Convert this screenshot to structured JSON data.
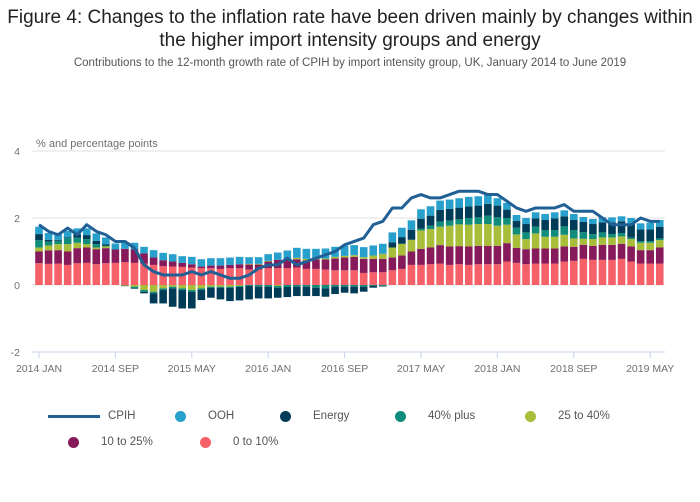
{
  "chart_data": {
    "type": "bar",
    "title": "Figure 4: Changes to the inflation rate have been driven mainly by changes within the higher import intensity groups and energy",
    "subtitle": "Contributions to the 12-month growth rate of CPIH by import intensity group, UK, January 2014 to June 2019",
    "ylabel": "% and percentage points",
    "ylim": [
      -2,
      4
    ],
    "yticks": [
      "4",
      "2",
      "0",
      "-2"
    ],
    "yticks_values": [
      4,
      2,
      0,
      -2
    ],
    "xticks": [
      {
        "label": "2014 JAN",
        "index": 0
      },
      {
        "label": "2014 SEP",
        "index": 8
      },
      {
        "label": "2015 MAY",
        "index": 16
      },
      {
        "label": "2016 JAN",
        "index": 24
      },
      {
        "label": "2016 SEP",
        "index": 32
      },
      {
        "label": "2017 MAY",
        "index": 40
      },
      {
        "label": "2018 JAN",
        "index": 48
      },
      {
        "label": "2018 SEP",
        "index": 56
      },
      {
        "label": "2019 MAY",
        "index": 64
      }
    ],
    "start": "2014 JAN",
    "n_months": 66,
    "grid": true,
    "legend_position": "bottom",
    "stacked_series": [
      {
        "name": "0 to 10%",
        "color": "#f66068",
        "values": [
          0.65,
          0.63,
          0.64,
          0.6,
          0.65,
          0.66,
          0.62,
          0.65,
          0.66,
          0.68,
          0.66,
          0.64,
          0.6,
          0.56,
          0.55,
          0.54,
          0.52,
          0.5,
          0.5,
          0.48,
          0.5,
          0.5,
          0.46,
          0.46,
          0.5,
          0.5,
          0.5,
          0.52,
          0.48,
          0.48,
          0.46,
          0.44,
          0.44,
          0.44,
          0.36,
          0.38,
          0.38,
          0.44,
          0.48,
          0.6,
          0.6,
          0.62,
          0.64,
          0.6,
          0.62,
          0.6,
          0.62,
          0.62,
          0.62,
          0.7,
          0.66,
          0.62,
          0.64,
          0.64,
          0.64,
          0.7,
          0.72,
          0.78,
          0.75,
          0.75,
          0.75,
          0.78,
          0.7,
          0.64,
          0.64,
          0.64
        ]
      },
      {
        "name": "10 to 25%",
        "color": "#871a5b",
        "values": [
          0.35,
          0.4,
          0.4,
          0.4,
          0.45,
          0.46,
          0.45,
          0.45,
          0.4,
          0.4,
          0.4,
          0.3,
          0.22,
          0.18,
          0.15,
          0.12,
          0.1,
          0.05,
          0.08,
          0.1,
          0.1,
          0.12,
          0.15,
          0.15,
          0.2,
          0.25,
          0.25,
          0.25,
          0.25,
          0.28,
          0.3,
          0.35,
          0.38,
          0.4,
          0.42,
          0.4,
          0.4,
          0.38,
          0.4,
          0.4,
          0.48,
          0.5,
          0.55,
          0.55,
          0.54,
          0.55,
          0.55,
          0.55,
          0.55,
          0.55,
          0.45,
          0.45,
          0.45,
          0.45,
          0.45,
          0.45,
          0.42,
          0.42,
          0.42,
          0.45,
          0.45,
          0.45,
          0.45,
          0.4,
          0.4,
          0.48
        ]
      },
      {
        "name": "25 to 40%",
        "color": "#a8bd3a",
        "values": [
          0.12,
          0.15,
          0.18,
          0.22,
          0.16,
          0.1,
          0.05,
          0.05,
          0.0,
          -0.02,
          -0.05,
          -0.15,
          -0.2,
          -0.1,
          -0.05,
          -0.1,
          -0.15,
          -0.1,
          -0.05,
          -0.05,
          -0.05,
          -0.03,
          0.02,
          0.02,
          0.02,
          -0.03,
          0.03,
          0.04,
          0.05,
          0.02,
          0.03,
          0.05,
          0.05,
          0.05,
          0.05,
          0.1,
          0.15,
          0.3,
          0.35,
          0.35,
          0.55,
          0.55,
          0.55,
          0.62,
          0.65,
          0.65,
          0.65,
          0.65,
          0.6,
          0.55,
          0.4,
          0.3,
          0.45,
          0.35,
          0.35,
          0.35,
          0.25,
          0.18,
          0.2,
          0.22,
          0.22,
          0.22,
          0.22,
          0.22,
          0.22,
          0.22
        ]
      },
      {
        "name": "40% plus",
        "color": "#118c7b",
        "values": [
          0.22,
          0.12,
          0.1,
          0.18,
          0.15,
          0.15,
          0.1,
          0.02,
          0.0,
          0.0,
          -0.05,
          -0.05,
          -0.05,
          -0.05,
          -0.05,
          -0.05,
          -0.05,
          -0.05,
          -0.03,
          -0.03,
          -0.03,
          -0.03,
          -0.03,
          -0.05,
          -0.05,
          -0.05,
          -0.06,
          -0.05,
          -0.05,
          -0.08,
          -0.1,
          -0.05,
          -0.05,
          -0.05,
          -0.05,
          -0.03,
          -0.03,
          0.0,
          0.0,
          0.0,
          0.05,
          0.1,
          0.15,
          0.15,
          0.15,
          0.2,
          0.2,
          0.25,
          0.25,
          0.2,
          0.2,
          0.2,
          0.2,
          0.2,
          0.2,
          0.25,
          0.25,
          0.2,
          0.15,
          0.15,
          0.1,
          0.1,
          0.05,
          0.05,
          0.05,
          0.05
        ]
      },
      {
        "name": "Energy",
        "color": "#003c57",
        "values": [
          0.18,
          0.05,
          0.03,
          0.02,
          0.1,
          0.12,
          0.1,
          0.05,
          0.0,
          -0.01,
          -0.01,
          -0.05,
          -0.3,
          -0.4,
          -0.55,
          -0.55,
          -0.5,
          -0.3,
          -0.3,
          -0.35,
          -0.4,
          -0.4,
          -0.4,
          -0.35,
          -0.35,
          -0.3,
          -0.3,
          -0.28,
          -0.28,
          -0.25,
          -0.25,
          -0.22,
          -0.18,
          -0.2,
          -0.15,
          -0.05,
          -0.01,
          0.15,
          0.2,
          0.3,
          0.3,
          0.3,
          0.35,
          0.35,
          0.35,
          0.35,
          0.35,
          0.35,
          0.35,
          0.25,
          0.2,
          0.25,
          0.25,
          0.3,
          0.35,
          0.3,
          0.3,
          0.3,
          0.3,
          0.3,
          0.35,
          0.35,
          0.4,
          0.35,
          0.35,
          0.35
        ]
      },
      {
        "name": "OOH",
        "color": "#27a0cc",
        "values": [
          0.22,
          0.2,
          0.2,
          0.2,
          0.18,
          0.2,
          0.22,
          0.2,
          0.18,
          0.2,
          0.2,
          0.2,
          0.22,
          0.22,
          0.22,
          0.2,
          0.22,
          0.22,
          0.22,
          0.22,
          0.22,
          0.22,
          0.2,
          0.2,
          0.2,
          0.22,
          0.25,
          0.3,
          0.3,
          0.3,
          0.3,
          0.3,
          0.3,
          0.3,
          0.3,
          0.3,
          0.3,
          0.3,
          0.28,
          0.28,
          0.28,
          0.28,
          0.28,
          0.28,
          0.28,
          0.28,
          0.28,
          0.28,
          0.22,
          0.2,
          0.18,
          0.18,
          0.18,
          0.18,
          0.18,
          0.18,
          0.18,
          0.15,
          0.15,
          0.15,
          0.15,
          0.15,
          0.18,
          0.18,
          0.2,
          0.2
        ]
      }
    ],
    "line_series": {
      "name": "CPIH",
      "color": "#206095",
      "values": [
        1.8,
        1.6,
        1.5,
        1.7,
        1.5,
        1.8,
        1.6,
        1.5,
        1.3,
        1.3,
        1.1,
        0.6,
        0.4,
        0.3,
        0.3,
        0.3,
        0.4,
        0.3,
        0.4,
        0.3,
        0.2,
        0.2,
        0.3,
        0.5,
        0.6,
        0.6,
        0.8,
        0.6,
        0.7,
        0.8,
        0.9,
        1.0,
        1.2,
        1.3,
        1.4,
        1.8,
        1.9,
        2.3,
        2.3,
        2.6,
        2.7,
        2.6,
        2.6,
        2.7,
        2.8,
        2.8,
        2.8,
        2.7,
        2.7,
        2.5,
        2.3,
        2.2,
        2.3,
        2.3,
        2.3,
        2.4,
        2.2,
        2.2,
        2.2,
        2.0,
        1.8,
        1.8,
        1.8,
        2.0,
        1.9,
        1.9
      ]
    },
    "legend": [
      {
        "name": "CPIH",
        "kind": "line",
        "color": "#206095"
      },
      {
        "name": "OOH",
        "kind": "dot",
        "color": "#27a0cc"
      },
      {
        "name": "Energy",
        "kind": "dot",
        "color": "#003c57"
      },
      {
        "name": "40% plus",
        "kind": "dot",
        "color": "#118c7b"
      },
      {
        "name": "25 to 40%",
        "kind": "dot",
        "color": "#a8bd3a"
      },
      {
        "name": "10 to 25%",
        "kind": "dot",
        "color": "#871a5b"
      },
      {
        "name": "0 to 10%",
        "kind": "dot",
        "color": "#f66068"
      }
    ]
  }
}
